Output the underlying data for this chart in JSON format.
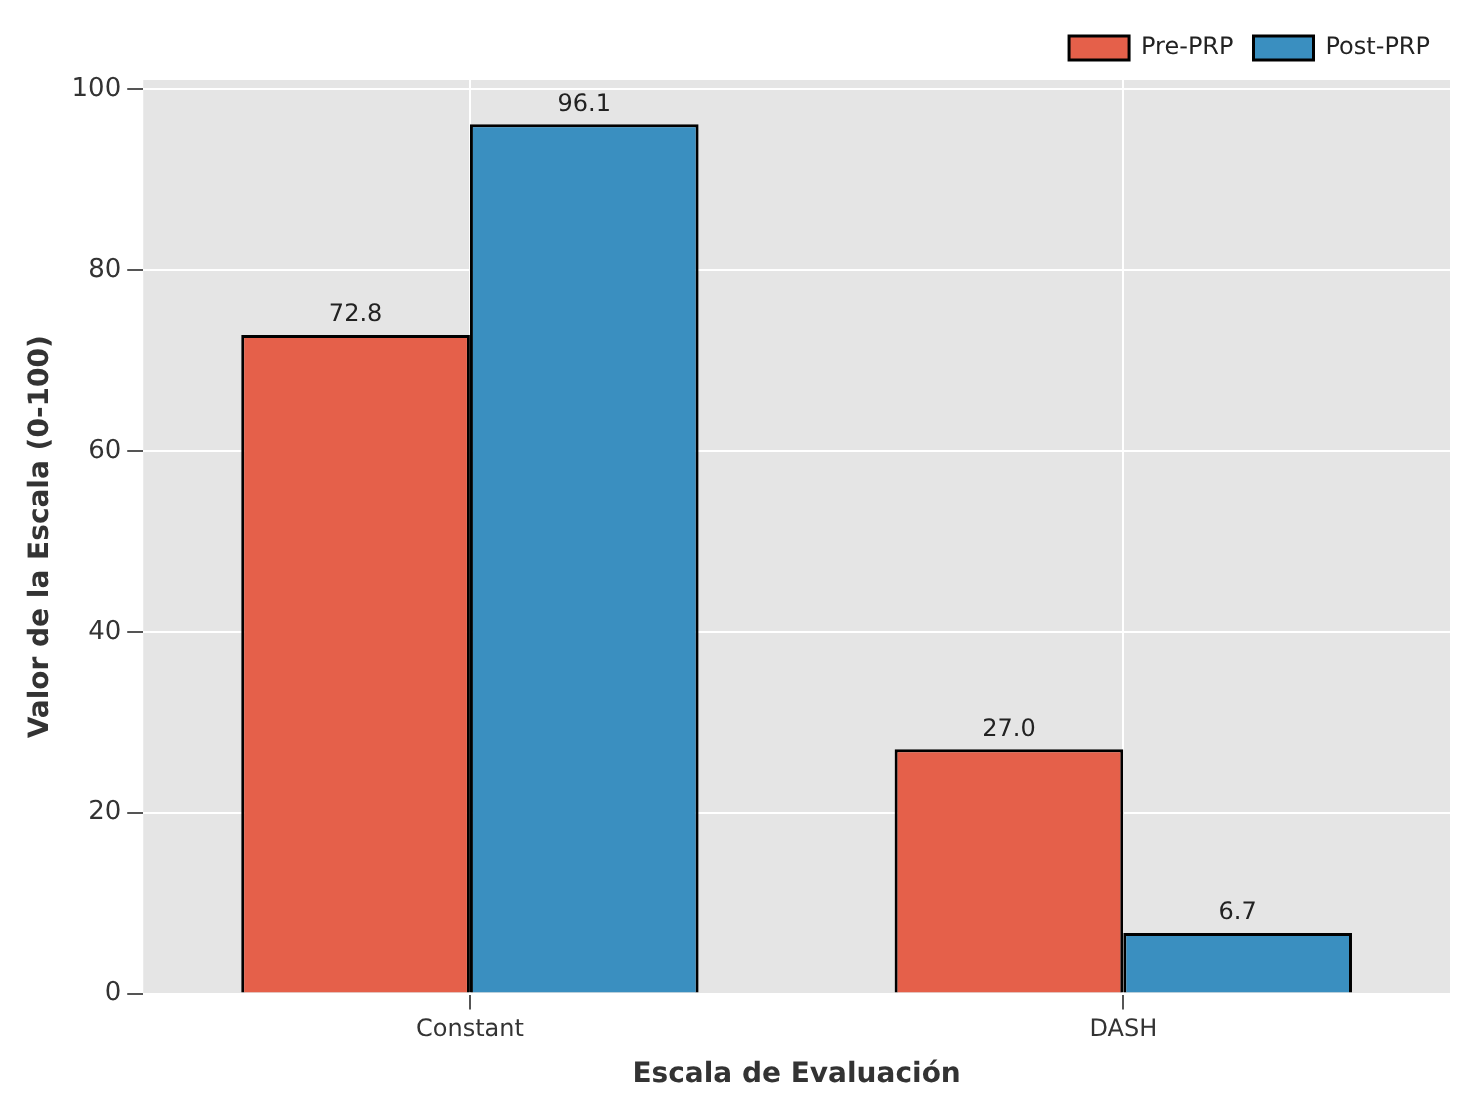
{
  "chart_data": {
    "type": "bar",
    "xlabel": "Escala de Evaluación",
    "ylabel": "Valor de la Escala (0-100)",
    "categories": [
      "Constant",
      "DASH"
    ],
    "series": [
      {
        "name": "Pre-PRP",
        "color": "#e5604a",
        "values": [
          72.8,
          27.0
        ],
        "value_labels": [
          "72.8",
          "27.0"
        ]
      },
      {
        "name": "Post-PRP",
        "color": "#3a8fc0",
        "values": [
          96.1,
          6.7
        ],
        "value_labels": [
          "96.1",
          "6.7"
        ]
      }
    ],
    "ylim": [
      0,
      101
    ],
    "yticks": [
      0,
      20,
      40,
      60,
      80,
      100
    ],
    "grid": true,
    "legend": "top right"
  }
}
